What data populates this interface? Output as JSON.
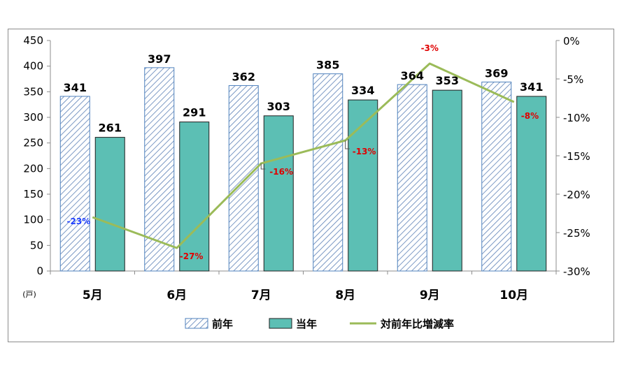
{
  "chart_data": {
    "type": "bar",
    "categories": [
      "5月",
      "6月",
      "7月",
      "8月",
      "9月",
      "10月"
    ],
    "series": [
      {
        "name": "前年",
        "values": [
          341,
          397,
          362,
          385,
          364,
          369
        ],
        "color": "#dbe5f1",
        "pattern": "diagonal-hatch",
        "stroke": "#4f81bd"
      },
      {
        "name": "当年",
        "values": [
          261,
          291,
          303,
          334,
          353,
          341
        ],
        "color": "#5cbfb4",
        "stroke": "#1f1f1f"
      },
      {
        "name": "対前年比増減率",
        "type": "line",
        "axis": "right",
        "values": [
          -23,
          -27,
          -16,
          -13,
          -3,
          -8
        ],
        "labels": [
          "-23%",
          "-27%",
          "-16%",
          "-13%",
          "-3%",
          "-8%"
        ],
        "color": "#9bbb59"
      }
    ],
    "label_colors": [
      "#1f3fff",
      "#e00000",
      "#e00000",
      "#e00000",
      "#e00000",
      "#e00000"
    ],
    "y_left": {
      "min": 0,
      "max": 450,
      "step": 50,
      "ticks": [
        "450",
        "400",
        "350",
        "300",
        "250",
        "200",
        "150",
        "100",
        "50",
        "0"
      ],
      "unit": "(戸)"
    },
    "y_right": {
      "min": -30,
      "max": 0,
      "step": 5,
      "ticks": [
        "0%",
        "-5%",
        "-10%",
        "-15%",
        "-20%",
        "-25%",
        "-30%"
      ]
    },
    "legend": {
      "position": "bottom",
      "items": [
        "前年",
        "当年",
        "対前年比増減率"
      ]
    },
    "grid": false
  }
}
